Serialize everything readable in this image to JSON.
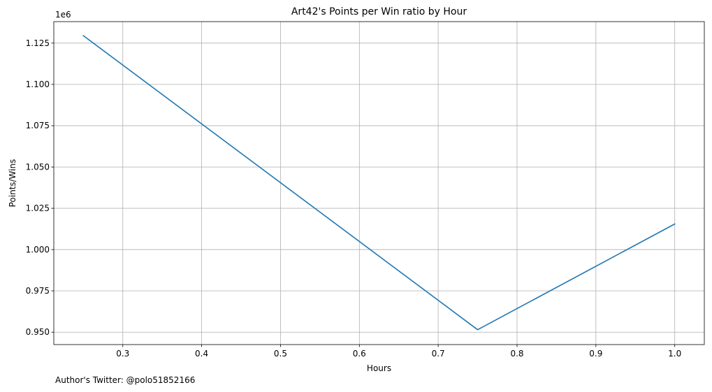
{
  "chart_data": {
    "type": "line",
    "title": "Art42's Points per Win ratio by Hour",
    "xlabel": "Hours",
    "ylabel": "Points/Wins",
    "offset_text": "1e6",
    "x": [
      0.25,
      0.75,
      1.0
    ],
    "series": [
      {
        "values": [
          1.1295,
          0.9515,
          1.0155
        ],
        "color": "#1f77b4"
      }
    ],
    "xlim": [
      0.2125,
      1.0375
    ],
    "ylim": [
      0.9425,
      1.138
    ],
    "xticks": [
      0.3,
      0.4,
      0.5,
      0.6,
      0.7,
      0.8,
      0.9,
      1.0
    ],
    "xtick_labels": [
      "0.3",
      "0.4",
      "0.5",
      "0.6",
      "0.7",
      "0.8",
      "0.9",
      "1.0"
    ],
    "yticks": [
      0.95,
      0.975,
      1.0,
      1.025,
      1.05,
      1.075,
      1.1,
      1.125
    ],
    "ytick_labels": [
      "0.950",
      "0.975",
      "1.000",
      "1.025",
      "1.050",
      "1.075",
      "1.100",
      "1.125"
    ],
    "grid": true
  },
  "footer": {
    "text": "Author's Twitter: @polo51852166"
  }
}
